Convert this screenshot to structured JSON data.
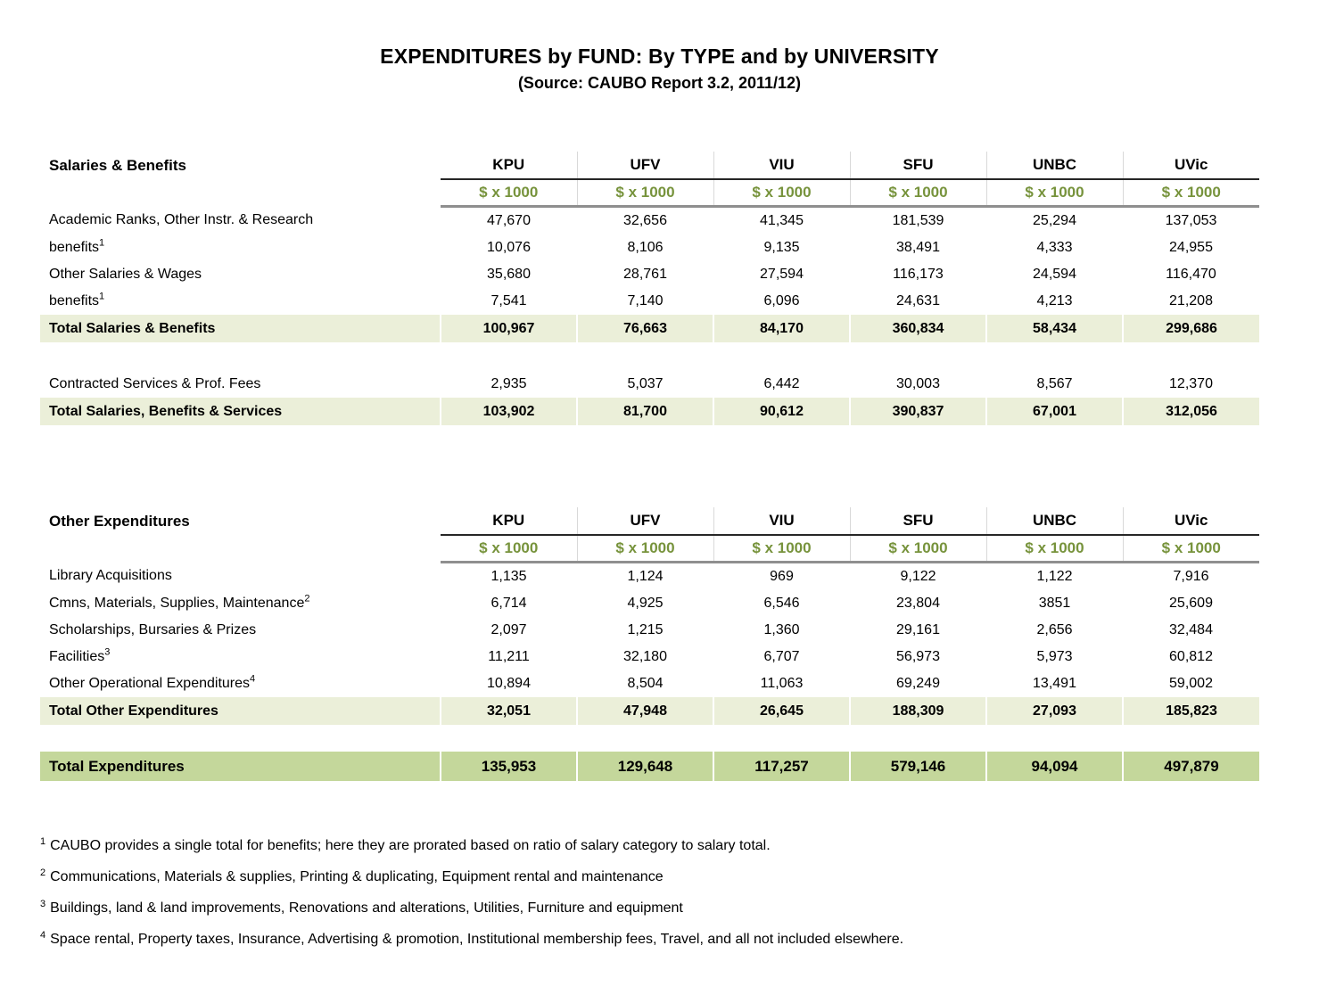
{
  "page": {
    "title": "EXPENDITURES by FUND: By TYPE and by UNIVERSITY",
    "subtitle": "(Source: CAUBO Report 3.2, 2011/12)"
  },
  "universities": [
    "KPU",
    "UFV",
    "VIU",
    "SFU",
    "UNBC",
    "UVic"
  ],
  "unit_label": "$ x 1000",
  "colors": {
    "unit_text": "#77933c",
    "total_row_bg": "#ebefd9",
    "grand_total_bg": "#c4d79b"
  },
  "table1": {
    "section_title": "Salaries & Benefits",
    "rows": [
      {
        "label": "Academic Ranks, Other Instr. & Research",
        "values": [
          "47,670",
          "32,656",
          "41,345",
          "181,539",
          "25,294",
          "137,053"
        ]
      },
      {
        "label": "benefits",
        "sup": "1",
        "values": [
          "10,076",
          "8,106",
          "9,135",
          "38,491",
          "4,333",
          "24,955"
        ]
      },
      {
        "label": "Other Salaries & Wages",
        "values": [
          "35,680",
          "28,761",
          "27,594",
          "116,173",
          "24,594",
          "116,470"
        ]
      },
      {
        "label": "benefits",
        "sup": "1",
        "values": [
          "7,541",
          "7,140",
          "6,096",
          "24,631",
          "4,213",
          "21,208"
        ]
      },
      {
        "label": "Total Salaries & Benefits",
        "values": [
          "100,967",
          "76,663",
          "84,170",
          "360,834",
          "58,434",
          "299,686"
        ]
      },
      {
        "label": "Contracted Services & Prof. Fees",
        "values": [
          "2,935",
          "5,037",
          "6,442",
          "30,003",
          "8,567",
          "12,370"
        ]
      },
      {
        "label": "Total Salaries, Benefits & Services",
        "values": [
          "103,902",
          "81,700",
          "90,612",
          "390,837",
          "67,001",
          "312,056"
        ]
      }
    ]
  },
  "table2": {
    "section_title": "Other Expenditures",
    "rows": [
      {
        "label": "Library Acquisitions",
        "values": [
          "1,135",
          "1,124",
          "969",
          "9,122",
          "1,122",
          "7,916"
        ]
      },
      {
        "label": "Cmns, Materials, Supplies, Maintenance",
        "sup": "2",
        "values": [
          "6,714",
          "4,925",
          "6,546",
          "23,804",
          "3851",
          "25,609"
        ]
      },
      {
        "label": "Scholarships, Bursaries & Prizes",
        "values": [
          "2,097",
          "1,215",
          "1,360",
          "29,161",
          "2,656",
          "32,484"
        ]
      },
      {
        "label": "Facilities",
        "sup": "3",
        "values": [
          "11,211",
          "32,180",
          "6,707",
          "56,973",
          "5,973",
          "60,812"
        ]
      },
      {
        "label": "Other Operational Expenditures",
        "sup": "4",
        "values": [
          "10,894",
          "8,504",
          "11,063",
          "69,249",
          "13,491",
          "59,002"
        ]
      },
      {
        "label": "Total Other Expenditures",
        "values": [
          "32,051",
          "47,948",
          "26,645",
          "188,309",
          "27,093",
          "185,823"
        ]
      }
    ]
  },
  "grand_total": {
    "label": "Total Expenditures",
    "values": [
      "135,953",
      "129,648",
      "117,257",
      "579,146",
      "94,094",
      "497,879"
    ]
  },
  "footnotes": [
    {
      "marker": "1",
      "text": "CAUBO provides a single total for benefits; here they are prorated based on ratio of salary category to salary total."
    },
    {
      "marker": "2",
      "text": "Communications, Materials & supplies, Printing & duplicating, Equipment rental and maintenance"
    },
    {
      "marker": "3",
      "text": "Buildings, land & land improvements, Renovations and alterations, Utilities, Furniture and equipment"
    },
    {
      "marker": "4",
      "text": "Space rental, Property taxes, Insurance, Advertising & promotion, Institutional membership fees, Travel, and all not included elsewhere."
    }
  ]
}
